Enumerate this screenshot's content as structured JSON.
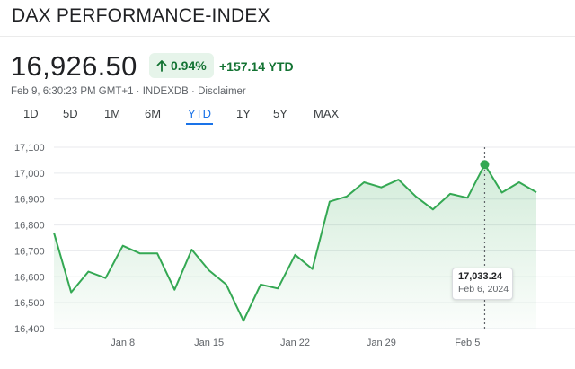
{
  "header": {
    "title": "DAX PERFORMANCE-INDEX",
    "price": "16,926.50",
    "percent_change": "0.94%",
    "abs_change": "+157.14 YTD",
    "timestamp": "Feb 9, 6:30:23 PM GMT+1",
    "source": "INDEXDB",
    "disclaimer": "Disclaimer",
    "separator": "·"
  },
  "tabs": [
    {
      "label": "1D"
    },
    {
      "label": "5D"
    },
    {
      "label": "1M"
    },
    {
      "label": "6M"
    },
    {
      "label": "YTD",
      "active": true
    },
    {
      "label": "1Y"
    },
    {
      "label": "5Y"
    },
    {
      "label": "MAX"
    }
  ],
  "tooltip": {
    "value": "17,033.24",
    "date": "Feb 6, 2024"
  },
  "colors": {
    "positive": "#137333",
    "line": "#34a853",
    "accent": "#1a73e8",
    "badge_bg": "#e6f4ea"
  },
  "icons": {
    "change_arrow": "arrow-up-icon"
  },
  "chart_data": {
    "type": "area",
    "x": [
      "Jan 2",
      "Jan 3",
      "Jan 4",
      "Jan 5",
      "Jan 8",
      "Jan 9",
      "Jan 10",
      "Jan 11",
      "Jan 12",
      "Jan 15",
      "Jan 16",
      "Jan 17",
      "Jan 18",
      "Jan 19",
      "Jan 22",
      "Jan 23",
      "Jan 24",
      "Jan 25",
      "Jan 26",
      "Jan 29",
      "Jan 30",
      "Jan 31",
      "Feb 1",
      "Feb 2",
      "Feb 5",
      "Feb 6",
      "Feb 7",
      "Feb 8",
      "Feb 9"
    ],
    "values": [
      16770,
      16540,
      16620,
      16595,
      16720,
      16690,
      16690,
      16550,
      16705,
      16625,
      16570,
      16430,
      16570,
      16555,
      16685,
      16630,
      16890,
      16910,
      16965,
      16945,
      16975,
      16910,
      16860,
      16920,
      16905,
      17033.24,
      16925,
      16965,
      16926.5
    ],
    "ylim": [
      16400,
      17100
    ],
    "yticks": [
      "17,100",
      "17,000",
      "16,900",
      "16,800",
      "16,700",
      "16,600",
      "16,500",
      "16,400"
    ],
    "xticks": [
      {
        "label": "Jan 8",
        "at": "Jan 8"
      },
      {
        "label": "Jan 15",
        "at": "Jan 15"
      },
      {
        "label": "Jan 22",
        "at": "Jan 22"
      },
      {
        "label": "Jan 29",
        "at": "Jan 29"
      },
      {
        "label": "Feb 5",
        "at": "Feb 5"
      }
    ],
    "highlight": "Feb 6",
    "grid": true
  }
}
